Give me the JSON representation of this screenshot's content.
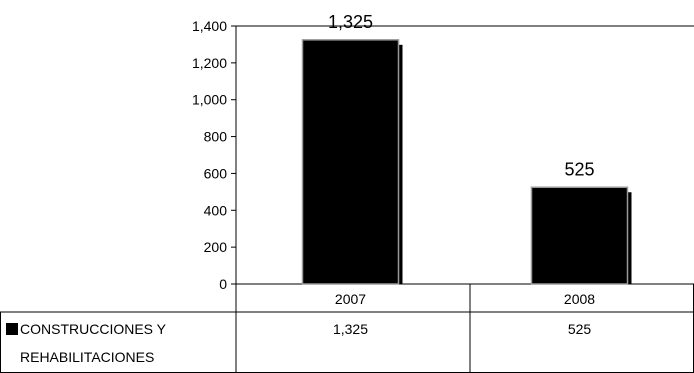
{
  "chart_data": {
    "type": "bar",
    "categories": [
      "2007",
      "2008"
    ],
    "series": [
      {
        "name_lines": [
          "CONSTRUCCIONES Y",
          "REHABILITACIONES"
        ],
        "values": [
          1325,
          525
        ],
        "value_labels": [
          "1,325",
          "525"
        ],
        "color": "#000000"
      }
    ],
    "y_ticks": [
      {
        "value": 0,
        "label": "0"
      },
      {
        "value": 200,
        "label": "200"
      },
      {
        "value": 400,
        "label": "400"
      },
      {
        "value": 600,
        "label": "600"
      },
      {
        "value": 800,
        "label": "800"
      },
      {
        "value": 1000,
        "label": "1,000"
      },
      {
        "value": 1200,
        "label": "1,200"
      },
      {
        "value": 1400,
        "label": "1,400"
      }
    ],
    "ylim": [
      0,
      1400
    ],
    "grid": false,
    "legend": "data-table"
  },
  "colors": {
    "bar": "#000000",
    "bar_edge": "#9a9a9a",
    "axis": "#000000",
    "top_border": "#808080"
  }
}
